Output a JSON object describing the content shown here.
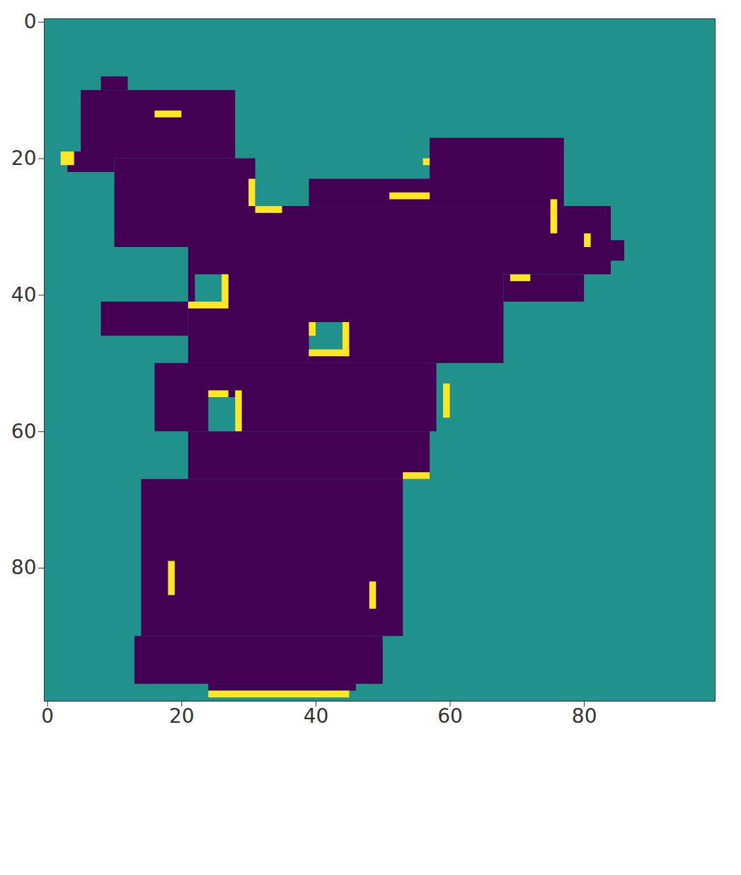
{
  "chart_data": {
    "type": "heatmap",
    "color": "viridis",
    "color_range": [
      0,
      1
    ],
    "background_value": 0.5,
    "xlim": [
      -0.5,
      99.5
    ],
    "ylim": [
      99.5,
      -0.5
    ],
    "xticks": [
      0,
      20,
      40,
      60,
      80
    ],
    "yticks": [
      0,
      20,
      40,
      60,
      80
    ],
    "regions": [
      {
        "x": [
          8,
          12
        ],
        "y": [
          8,
          10
        ],
        "value": 0
      },
      {
        "x": [
          5,
          28
        ],
        "y": [
          10,
          20
        ],
        "value": 0
      },
      {
        "x": [
          10,
          31
        ],
        "y": [
          20,
          33
        ],
        "value": 0
      },
      {
        "x": [
          3,
          10
        ],
        "y": [
          19,
          22
        ],
        "value": 0
      },
      {
        "x": [
          57,
          77
        ],
        "y": [
          17,
          27
        ],
        "value": 0
      },
      {
        "x": [
          39,
          57
        ],
        "y": [
          23,
          27
        ],
        "value": 0
      },
      {
        "x": [
          30,
          84
        ],
        "y": [
          27,
          37
        ],
        "value": 0
      },
      {
        "x": [
          84,
          86
        ],
        "y": [
          32,
          35
        ],
        "value": 0
      },
      {
        "x": [
          21,
          68
        ],
        "y": [
          32,
          50
        ],
        "value": 0
      },
      {
        "x": [
          68,
          80
        ],
        "y": [
          37,
          41
        ],
        "value": 0
      },
      {
        "x": [
          8,
          21
        ],
        "y": [
          41,
          46
        ],
        "value": 0
      },
      {
        "x": [
          16,
          58
        ],
        "y": [
          50,
          60
        ],
        "value": 0
      },
      {
        "x": [
          21,
          57
        ],
        "y": [
          60,
          67
        ],
        "value": 0
      },
      {
        "x": [
          14,
          53
        ],
        "y": [
          67,
          90
        ],
        "value": 0
      },
      {
        "x": [
          13,
          50
        ],
        "y": [
          90,
          97
        ],
        "value": 0
      },
      {
        "x": [
          24,
          46
        ],
        "y": [
          97,
          98
        ],
        "value": 0
      },
      {
        "x": [
          22,
          27
        ],
        "y": [
          37,
          41
        ],
        "value": 0.5
      },
      {
        "x": [
          39,
          44
        ],
        "y": [
          44,
          49
        ],
        "value": 0.5
      },
      {
        "x": [
          24,
          28
        ],
        "y": [
          55,
          60
        ],
        "value": 0.5
      },
      {
        "x": [
          16,
          20
        ],
        "y": [
          13,
          14
        ],
        "value": 1
      },
      {
        "x": [
          2,
          4
        ],
        "y": [
          19,
          21
        ],
        "value": 1
      },
      {
        "x": [
          30,
          31
        ],
        "y": [
          23,
          27
        ],
        "value": 1
      },
      {
        "x": [
          31,
          35
        ],
        "y": [
          27,
          28
        ],
        "value": 1
      },
      {
        "x": [
          51,
          57
        ],
        "y": [
          25,
          26
        ],
        "value": 1
      },
      {
        "x": [
          56,
          57
        ],
        "y": [
          20,
          21
        ],
        "value": 1
      },
      {
        "x": [
          75,
          76
        ],
        "y": [
          26,
          31
        ],
        "value": 1
      },
      {
        "x": [
          80,
          81
        ],
        "y": [
          31,
          33
        ],
        "value": 1
      },
      {
        "x": [
          69,
          72
        ],
        "y": [
          37,
          38
        ],
        "value": 1
      },
      {
        "x": [
          21,
          27
        ],
        "y": [
          41,
          42
        ],
        "value": 1
      },
      {
        "x": [
          26,
          27
        ],
        "y": [
          37,
          41
        ],
        "value": 1
      },
      {
        "x": [
          39,
          45
        ],
        "y": [
          48,
          49
        ],
        "value": 1
      },
      {
        "x": [
          44,
          45
        ],
        "y": [
          44,
          49
        ],
        "value": 1
      },
      {
        "x": [
          39,
          40
        ],
        "y": [
          44,
          46
        ],
        "value": 1
      },
      {
        "x": [
          24,
          27
        ],
        "y": [
          54,
          55
        ],
        "value": 1
      },
      {
        "x": [
          28,
          29
        ],
        "y": [
          54,
          60
        ],
        "value": 1
      },
      {
        "x": [
          59,
          60
        ],
        "y": [
          53,
          58
        ],
        "value": 1
      },
      {
        "x": [
          53,
          57
        ],
        "y": [
          66,
          67
        ],
        "value": 1
      },
      {
        "x": [
          18,
          19
        ],
        "y": [
          79,
          84
        ],
        "value": 1
      },
      {
        "x": [
          48,
          49
        ],
        "y": [
          82,
          86
        ],
        "value": 1
      },
      {
        "x": [
          24,
          45
        ],
        "y": [
          98,
          99
        ],
        "value": 1
      }
    ]
  }
}
